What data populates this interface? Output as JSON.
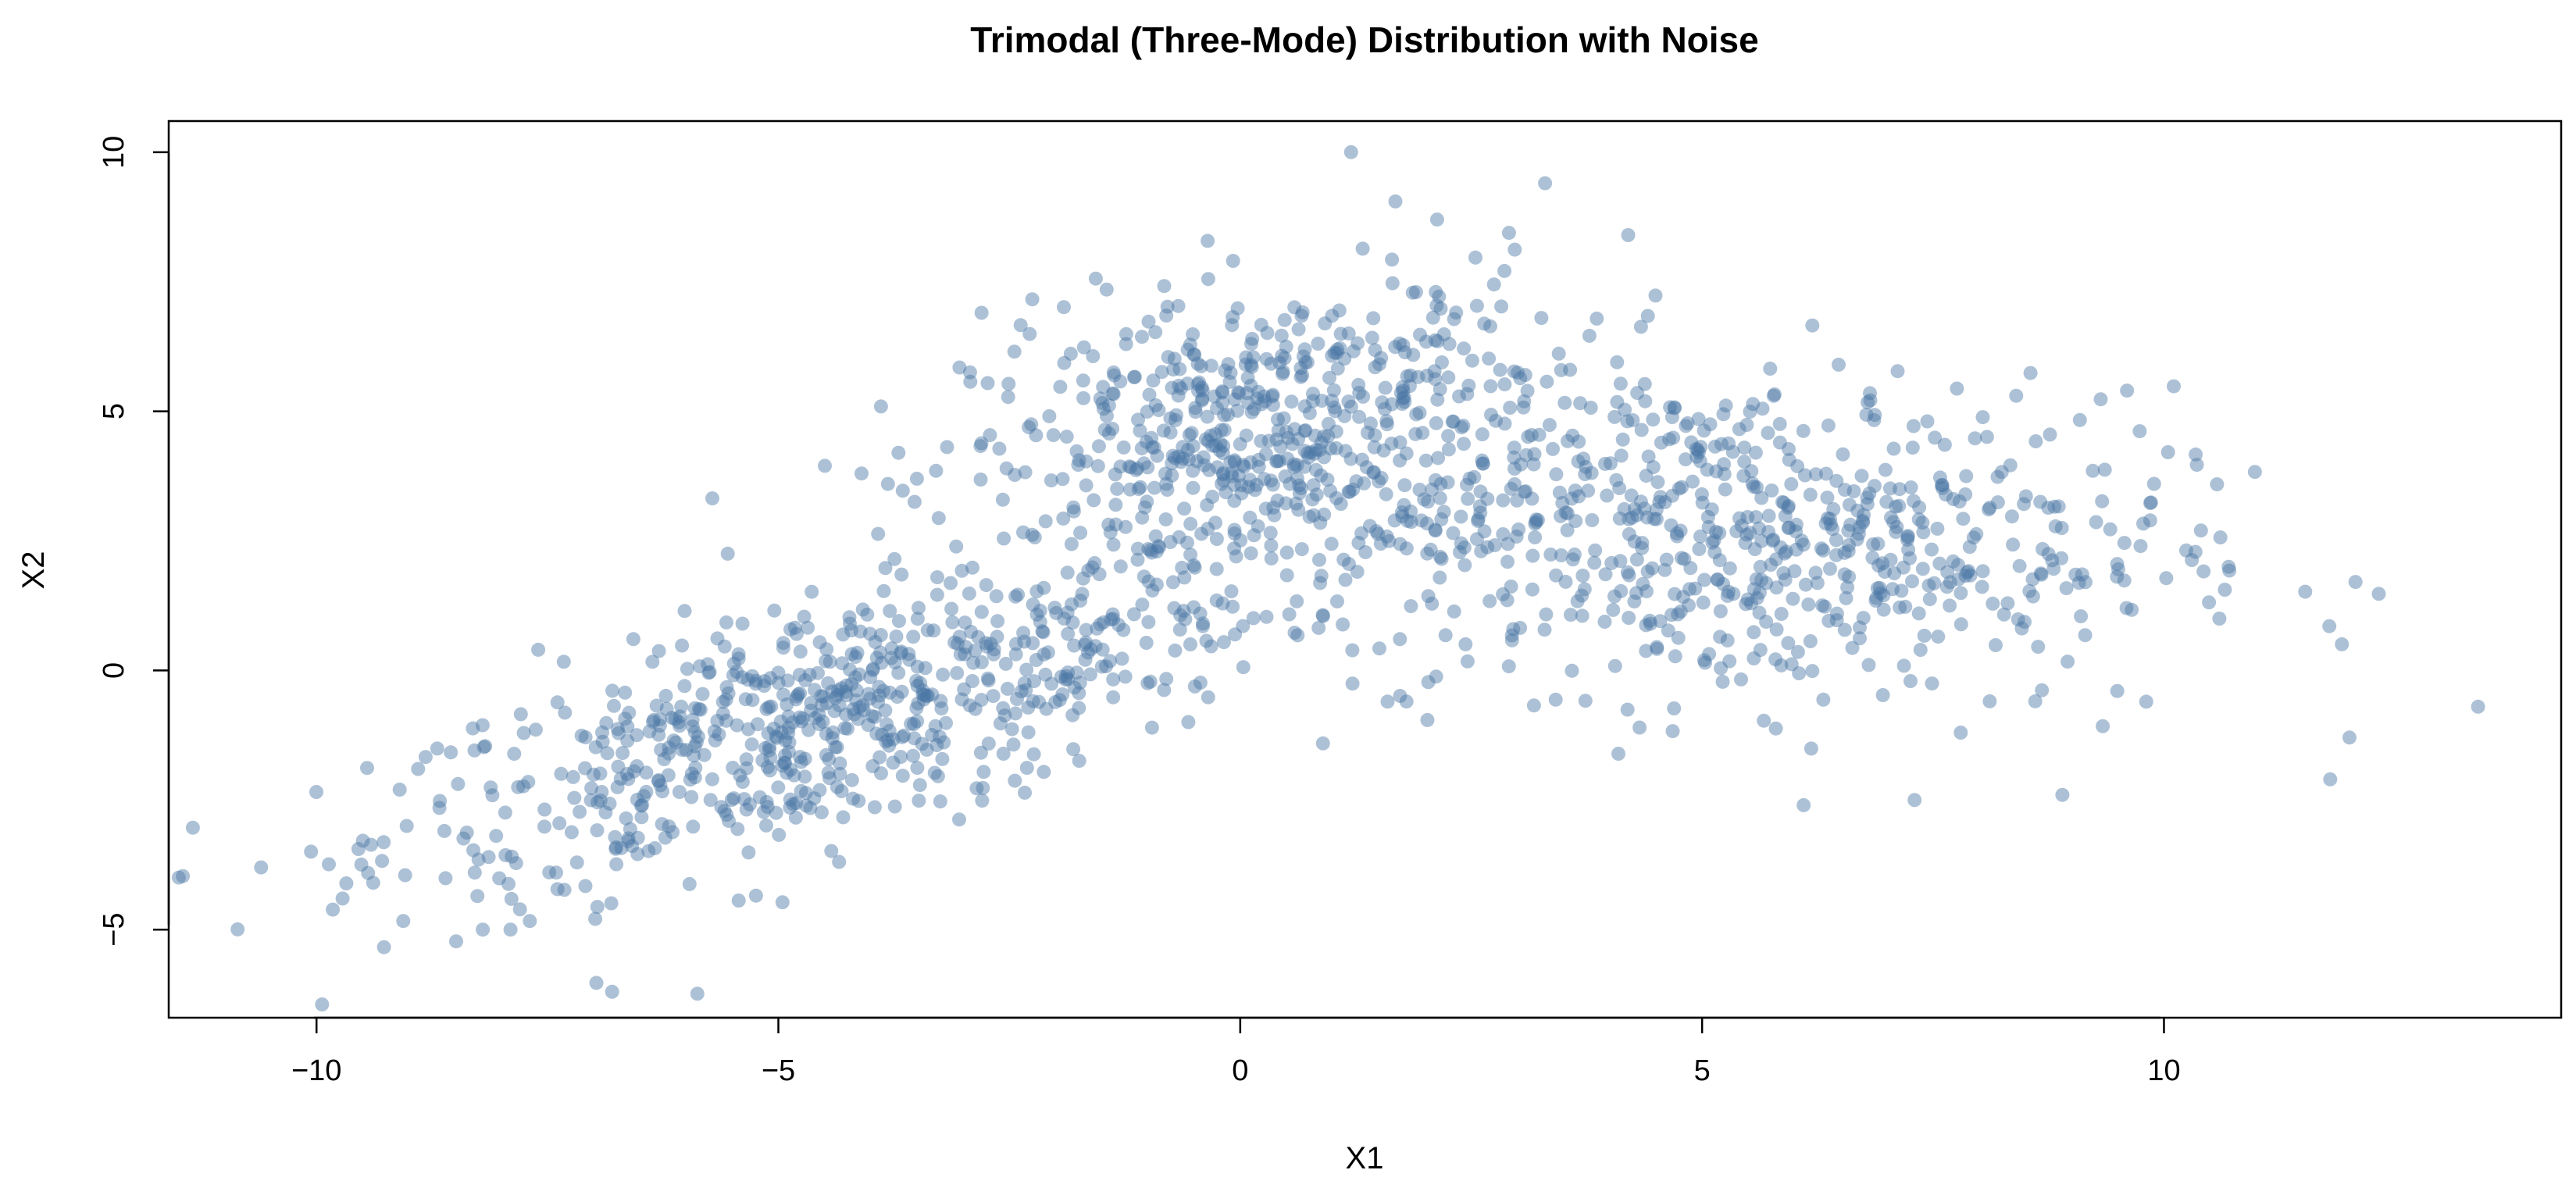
{
  "chart_data": {
    "type": "scatter",
    "title": "Trimodal (Three-Mode) Distribution with Noise",
    "xlabel": "X1",
    "ylabel": "X2",
    "xlim": [
      -11.6,
      14.3
    ],
    "ylim": [
      -6.7,
      10.6
    ],
    "xticks": [
      -10,
      -5,
      0,
      5,
      10
    ],
    "yticks": [
      -5,
      0,
      5,
      10
    ],
    "xtick_labels": [
      "−10",
      "−5",
      "0",
      "5",
      "10"
    ],
    "ytick_labels": [
      "−5",
      "0",
      "5",
      "10"
    ],
    "grid": false,
    "legend": "none",
    "point_color": "#4a76a3",
    "point_opacity": 0.45,
    "clusters": [
      {
        "center": [
          -4.5,
          -1.0
        ],
        "sx": 2.4,
        "sy": 1.6,
        "rho": 0.7,
        "count": 700
      },
      {
        "center": [
          0.3,
          4.5
        ],
        "sx": 1.6,
        "sy": 1.5,
        "rho": 0.25,
        "count": 600
      },
      {
        "center": [
          5.5,
          2.6
        ],
        "sx": 2.3,
        "sy": 1.6,
        "rho": -0.1,
        "count": 650
      }
    ],
    "outliers": [
      {
        "x": -10.6,
        "y": -3.8
      },
      {
        "x": 13.4,
        "y": -0.7
      },
      {
        "x": 11.8,
        "y": -2.1
      },
      {
        "x": -6.8,
        "y": -6.2
      },
      {
        "x": 1.2,
        "y": 10.0
      },
      {
        "x": 3.3,
        "y": 9.4
      },
      {
        "x": 10.7,
        "y": 2.0
      },
      {
        "x": 10.6,
        "y": 1.0
      },
      {
        "x": 10.4,
        "y": 2.7
      },
      {
        "x": 8.9,
        "y": -2.4
      },
      {
        "x": 7.3,
        "y": -2.5
      },
      {
        "x": 6.1,
        "y": -2.6
      },
      {
        "x": 1.8,
        "y": -0.6
      },
      {
        "x": -8.9,
        "y": -1.9
      },
      {
        "x": -9.1,
        "y": -2.3
      },
      {
        "x": -7.9,
        "y": -5.0
      },
      {
        "x": -8.2,
        "y": -5.0
      },
      {
        "x": -7.6,
        "y": 0.4
      },
      {
        "x": -3.7,
        "y": 4.2
      },
      {
        "x": -3.5,
        "y": 3.7
      },
      {
        "x": -4.1,
        "y": 3.8
      },
      {
        "x": -2.8,
        "y": 6.9
      },
      {
        "x": 9.6,
        "y": 5.4
      },
      {
        "x": 4.2,
        "y": 8.4
      },
      {
        "x": 8.4,
        "y": 5.3
      },
      {
        "x": 7.8,
        "y": -1.2
      }
    ]
  }
}
